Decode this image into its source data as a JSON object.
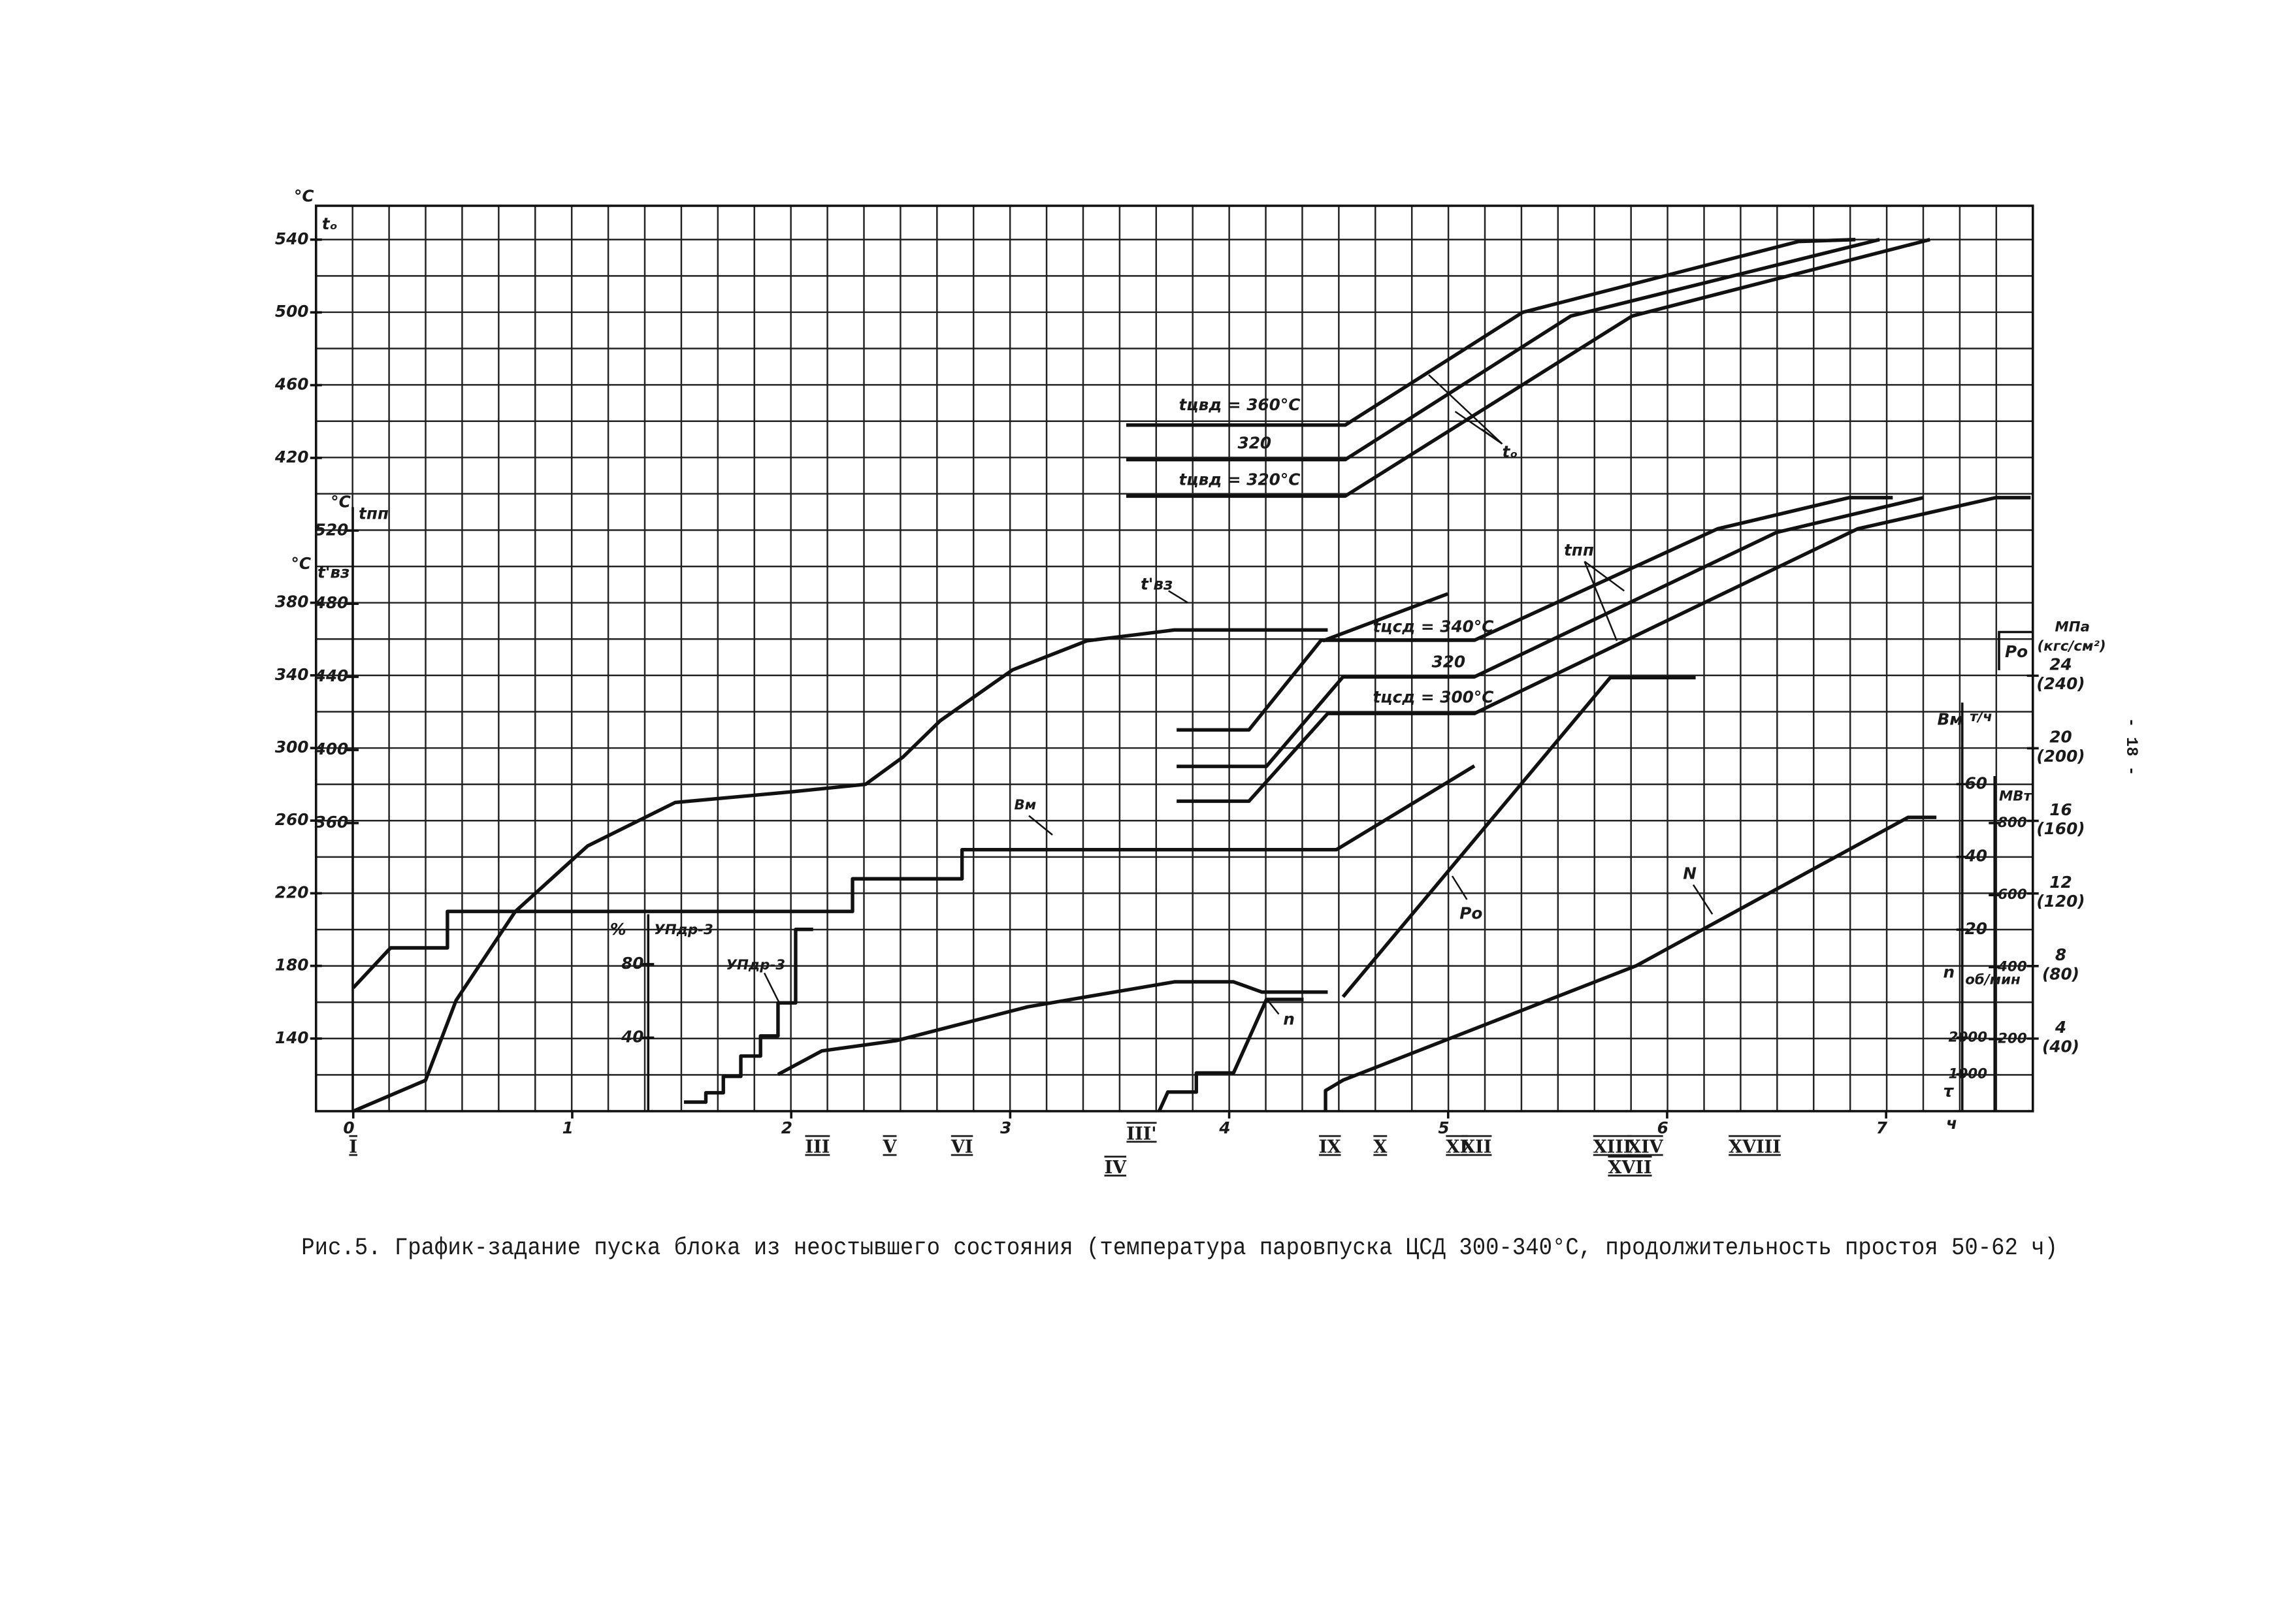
{
  "page_number": "- 18 -",
  "caption": "Рис.5. График-задание пуска блока из неостывшего состояния (температура паровпуска ЦСД 300-340°С, продолжительность простоя 50-62 ч)",
  "chart_data": {
    "type": "line",
    "x_label": "τ",
    "x_unit": "ч",
    "xlim": [
      -0.17,
      7.67
    ],
    "xticks": [
      0,
      1,
      2,
      3,
      4,
      5,
      6,
      7
    ],
    "x_markers": [
      {
        "label": "I",
        "x": 0
      },
      {
        "label": "III",
        "x": 2.12
      },
      {
        "label": "V",
        "x": 2.45
      },
      {
        "label": "VI",
        "x": 2.78
      },
      {
        "label": "III'",
        "x": 3.6
      },
      {
        "label": "IV",
        "x": 3.48
      },
      {
        "label": "IX",
        "x": 4.46
      },
      {
        "label": "X",
        "x": 4.69
      },
      {
        "label": "XI",
        "x": 5.04
      },
      {
        "label": "XII",
        "x": 5.13
      },
      {
        "label": "XIII",
        "x": 5.75
      },
      {
        "label": "XIV",
        "x": 5.9
      },
      {
        "label": "XVII",
        "x": 5.83
      },
      {
        "label": "XVIII",
        "x": 6.4
      }
    ],
    "axes": [
      {
        "label": "tₒ",
        "unit": "°C",
        "lim": [
          60.8,
          558.6
        ],
        "ticks": [
          420,
          460,
          500,
          540
        ]
      },
      {
        "label": "t'вз",
        "unit": "°C",
        "lim": [
          100,
          598.6
        ],
        "ticks": [
          140,
          180,
          220,
          260,
          300,
          340,
          380
        ]
      },
      {
        "label": "tпп",
        "unit": "°C",
        "lim": [
          202.4,
          697.7
        ],
        "ticks": [
          360,
          400,
          440,
          480,
          520
        ]
      },
      {
        "label": "УПдр-3",
        "unit": "%",
        "lim": [
          0,
          492.8
        ],
        "ticks": [
          40,
          80
        ]
      },
      {
        "label": "n",
        "unit": "об/мин",
        "lim": [
          0,
          24640
        ],
        "ticks": [
          1000,
          2000
        ]
      },
      {
        "label": "Bм",
        "unit": "т/ч",
        "lim": [
          -29.9,
          219
        ],
        "ticks": [
          20,
          40,
          60
        ]
      },
      {
        "unit": "МВт",
        "lim": [
          0,
          2514
        ],
        "ticks": [
          200,
          400,
          600,
          800
        ]
      },
      {
        "label": "Pо",
        "unit": "МПа",
        "unit2": "(кгс/см²)",
        "lim": [
          0,
          49.9
        ],
        "ticks": [
          4,
          8,
          12,
          16,
          20,
          24
        ],
        "tick_labels_kgf": [
          "(40)",
          "(80)",
          "(120)",
          "(160)",
          "(200)",
          "(240)"
        ]
      }
    ],
    "series": [
      {
        "axis": 0,
        "color": "#111111",
        "x": [
          3.53,
          4.53,
          5.34,
          6.6,
          6.86
        ],
        "values": [
          438,
          438,
          500,
          539,
          540
        ]
      },
      {
        "axis": 0,
        "color": "#111111",
        "x": [
          3.53,
          4.53,
          5.56,
          6.97
        ],
        "values": [
          419,
          419,
          498,
          540
        ]
      },
      {
        "axis": 0,
        "color": "#111111",
        "x": [
          3.53,
          4.53,
          5.84,
          7.2
        ],
        "values": [
          399,
          399,
          498,
          540
        ]
      },
      {
        "axis": 2,
        "color": "#111111",
        "x": [
          3.76,
          4.09,
          4.42,
          5.12,
          6.23,
          6.83,
          7.03
        ],
        "values": [
          411,
          411,
          460,
          460,
          521,
          538,
          538
        ]
      },
      {
        "axis": 2,
        "color": "#111111",
        "x": [
          3.76,
          4.17,
          4.52,
          5.12,
          6.5,
          7.17
        ],
        "values": [
          391,
          391,
          440,
          440,
          519,
          538
        ]
      },
      {
        "axis": 2,
        "color": "#111111",
        "x": [
          3.76,
          4.09,
          4.45,
          5.12,
          6.87,
          7.5,
          7.66
        ],
        "values": [
          372,
          372,
          420,
          420,
          521,
          538,
          538
        ]
      },
      {
        "axis": 1,
        "color": "#111111",
        "x": [
          0,
          0.33,
          0.47,
          0.74,
          1.07,
          1.47,
          2.01,
          2.34,
          2.51,
          2.68,
          3.01,
          3.35,
          3.75,
          4.45
        ],
        "values": [
          100,
          117,
          161,
          210,
          246,
          270,
          276,
          280,
          295,
          315,
          343,
          359,
          365,
          365
        ]
      },
      {
        "axis": 5,
        "color": "#111111",
        "x": [
          0,
          0.17,
          0.43,
          0.43,
          2.28,
          2.28,
          2.78,
          2.78,
          4.49,
          5.12
        ],
        "values": [
          4,
          15,
          15,
          25,
          25,
          34,
          34,
          42,
          42,
          65
        ]
      },
      {
        "axis": 3,
        "color": "#111111",
        "x": [
          1.51,
          1.61,
          1.61,
          1.69,
          1.69,
          1.77,
          1.77,
          1.86,
          1.86,
          1.94,
          1.94,
          2.02,
          2.02,
          2.1
        ],
        "values": [
          5,
          5,
          10,
          10,
          19,
          19,
          30,
          30,
          41,
          41,
          59,
          59,
          99,
          99
        ]
      },
      {
        "axis": 4,
        "color": "#111111",
        "x": [
          1.94,
          2.14,
          2.48,
          3.08,
          3.75,
          4.02,
          4.15,
          4.45
        ],
        "values": [
          1000,
          1640,
          1920,
          2840,
          3520,
          3520,
          3240,
          3240
        ]
      },
      {
        "axis": 4,
        "color": "#111111",
        "x": [
          3.68,
          3.72,
          3.85,
          3.85,
          4.02,
          4.17,
          4.34
        ],
        "values": [
          0,
          520,
          520,
          1040,
          1040,
          3040,
          3040
        ]
      },
      {
        "axis": 7,
        "color": "#111111",
        "x": [
          4.52,
          5.74,
          6.13
        ],
        "values": [
          6.3,
          23.9,
          23.9
        ]
      },
      {
        "axis": 6,
        "color": "#111111",
        "x": [
          4.44,
          4.44,
          4.52,
          5.86,
          7.1,
          7.23
        ],
        "values": [
          0,
          57,
          86,
          404,
          816,
          816
        ]
      }
    ],
    "annotations": [
      "tцвд = 360°C",
      "320",
      "tцвд = 320°C",
      "tₒ",
      "t'вз",
      "tцсд = 340°C",
      "320",
      "tцсд = 300°C",
      "tпп",
      "Bм",
      "Pо",
      "N",
      "n",
      "УПдр-3"
    ]
  }
}
